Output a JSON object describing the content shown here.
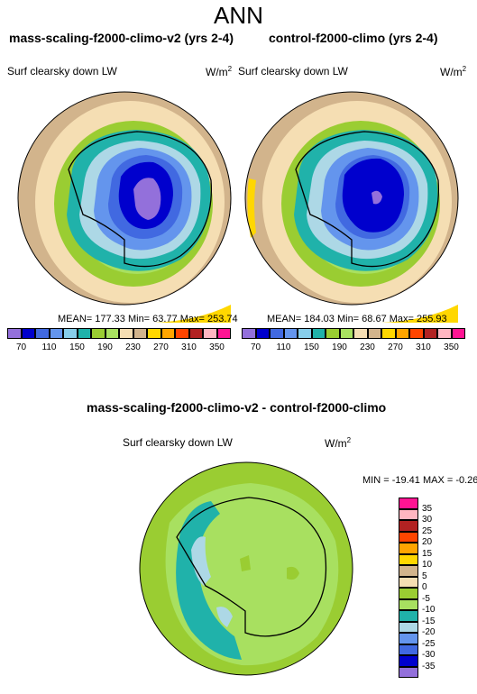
{
  "title": "ANN",
  "left_panel": {
    "title": "mass-scaling-f2000-climo-v2 (yrs 2-4)",
    "variable": "Surf clearsky down LW",
    "units_base": "W/m",
    "units_exp": "2",
    "stats": "MEAN= 177.33  Min=  63.77  Max= 253.74"
  },
  "right_panel": {
    "title": "control-f2000-climo (yrs 2-4)",
    "variable": "Surf clearsky down LW",
    "units_base": "W/m",
    "units_exp": "2",
    "stats": "MEAN= 184.03  Min=  68.67  Max= 255.93"
  },
  "top_colorbar": {
    "labels": [
      "70",
      "110",
      "150",
      "190",
      "230",
      "270",
      "310",
      "350"
    ],
    "colors": [
      "#9370DB",
      "#0000CD",
      "#4169E1",
      "#6495ED",
      "#87CEEB",
      "#20B2AA",
      "#9ACD32",
      "#A8E060",
      "#F5DEB3",
      "#D2B48C",
      "#FFD700",
      "#FFA500",
      "#FF4500",
      "#B22222",
      "#FFB6C1",
      "#FF1493"
    ]
  },
  "diff_panel": {
    "title": "mass-scaling-f2000-climo-v2 - control-f2000-climo",
    "variable": "Surf clearsky down LW",
    "units_base": "W/m",
    "units_exp": "2",
    "stats": "MIN = -19.41 MAX =  -0.26"
  },
  "diff_colorbar": {
    "labels": [
      "35",
      "30",
      "25",
      "20",
      "15",
      "10",
      "5",
      "0",
      "-5",
      "-10",
      "-15",
      "-20",
      "-25",
      "-30",
      "-35"
    ],
    "colors": [
      "#FF1493",
      "#FFB6C1",
      "#B22222",
      "#FF4500",
      "#FFA500",
      "#FFD700",
      "#D2B48C",
      "#F5DEB3",
      "#9ACD32",
      "#A8E060",
      "#20B2AA",
      "#ADD8E6",
      "#6495ED",
      "#4169E1",
      "#0000CD",
      "#9370DB"
    ]
  },
  "colors": {
    "c_dblue": "#0000CD",
    "c_blue": "#4169E1",
    "c_mblue": "#6495ED",
    "c_lblue": "#ADD8E6",
    "c_teal": "#20B2AA",
    "c_olive": "#9ACD32",
    "c_lgreen": "#A8E060",
    "c_wheat": "#F5DEB3",
    "c_tan": "#D2B48C",
    "c_gold": "#FFD700",
    "c_purple": "#9370DB"
  }
}
